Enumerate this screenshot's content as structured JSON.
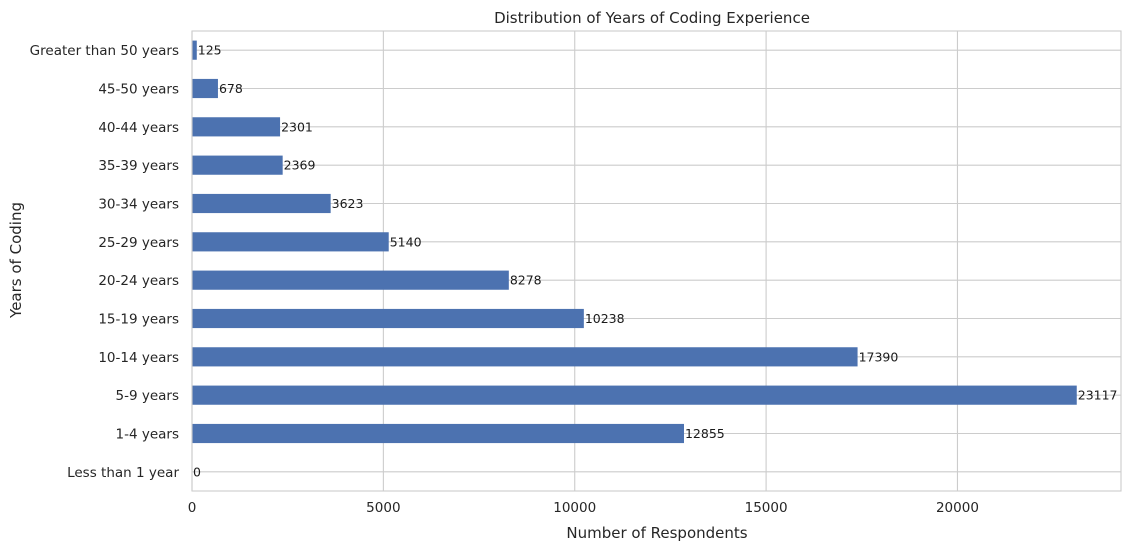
{
  "chart_data": {
    "type": "bar",
    "orientation": "horizontal",
    "title": "Distribution of Years of Coding Experience",
    "xlabel": "Number of Respondents",
    "ylabel": "Years of Coding",
    "categories": [
      "Less than 1 year",
      "1-4 years",
      "5-9 years",
      "10-14 years",
      "15-19 years",
      "20-24 years",
      "25-29 years",
      "30-34 years",
      "35-39 years",
      "40-44 years",
      "45-50 years",
      "Greater than 50 years"
    ],
    "values": [
      0,
      12855,
      23117,
      17390,
      10238,
      8278,
      5140,
      3623,
      2369,
      2301,
      678,
      125
    ],
    "xlim": [
      0,
      24273
    ],
    "xticks": [
      0,
      5000,
      10000,
      15000,
      20000
    ],
    "grid": true,
    "bar_color": "#4c72b0",
    "grid_color": "#cccccc"
  }
}
